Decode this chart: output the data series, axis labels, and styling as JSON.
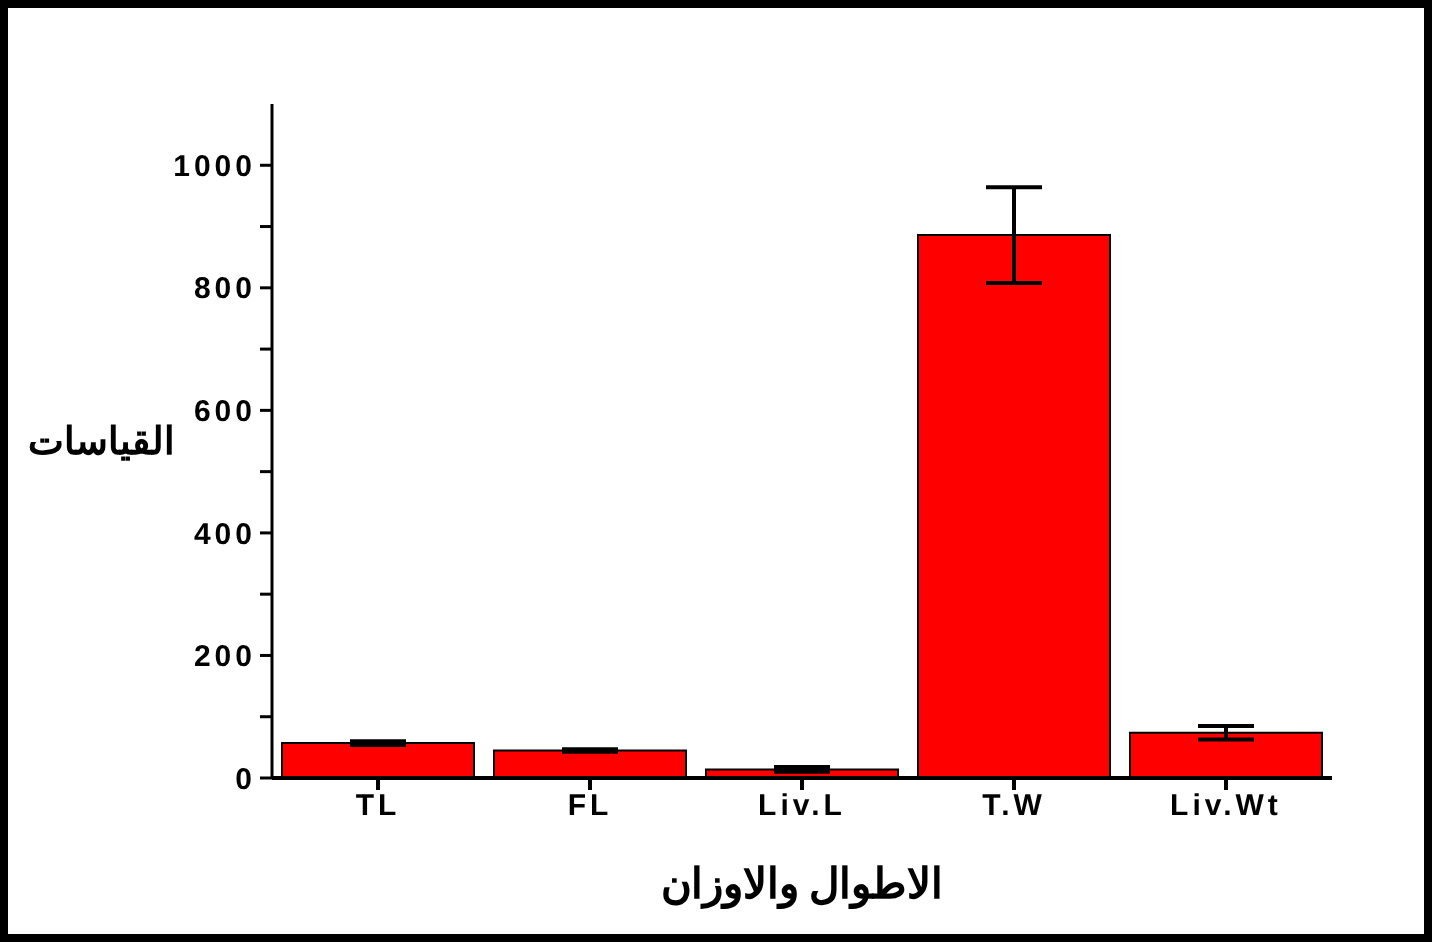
{
  "chart_data": {
    "type": "bar",
    "xlabel": "الاطوال والاوزان",
    "ylabel": "القياسات",
    "categories": [
      "TL",
      "FL",
      "Liv.L",
      "T.W",
      "Liv.Wt"
    ],
    "values": [
      57,
      45,
      14,
      886,
      74
    ],
    "errors": [
      3,
      2,
      4,
      78,
      11
    ],
    "color": "#ff0000",
    "ylim": [
      0,
      1100
    ],
    "yticks": [
      0,
      {
        "value": 100,
        "label": null
      },
      200,
      {
        "value": 300,
        "label": null
      },
      400,
      {
        "value": 500,
        "label": null
      },
      600,
      {
        "value": 700,
        "label": null
      },
      800,
      {
        "value": 900,
        "label": null
      },
      1000
    ],
    "grid": false,
    "legend": false
  }
}
